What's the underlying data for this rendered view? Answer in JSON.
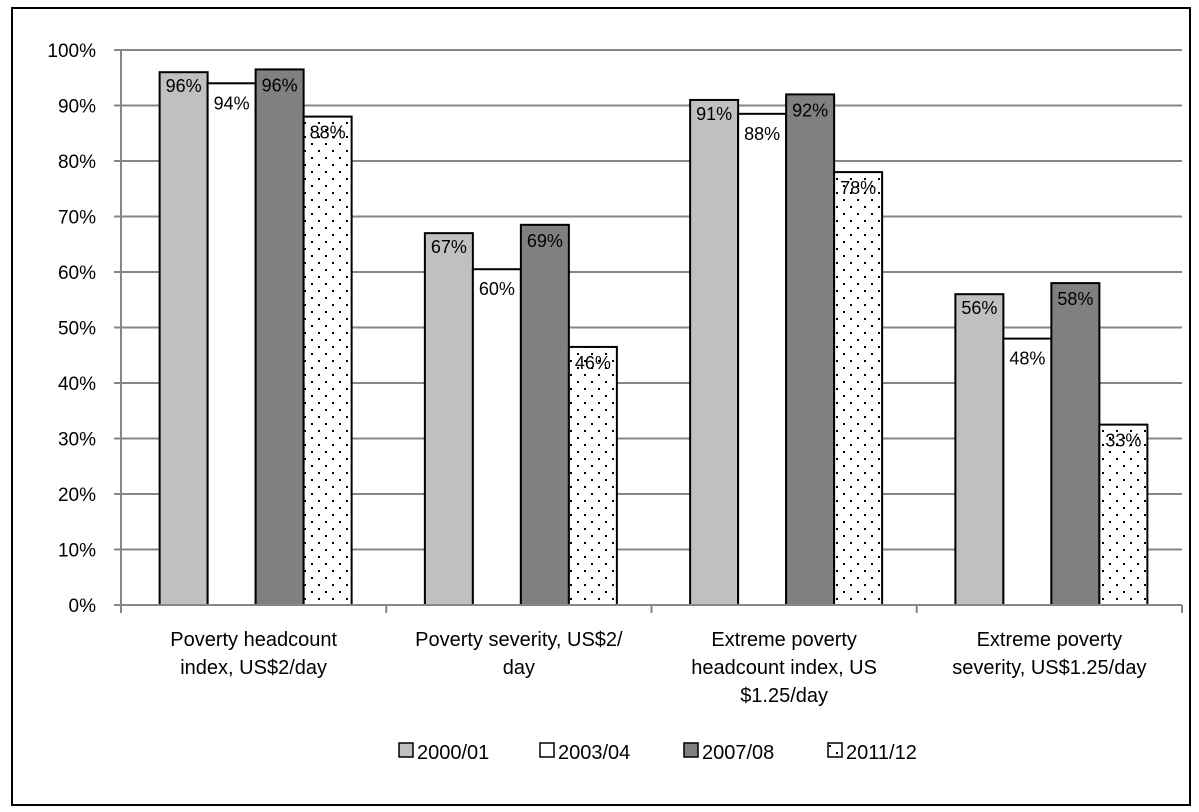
{
  "chart_data": {
    "type": "bar",
    "title": "",
    "xlabel": "",
    "ylabel": "",
    "ylim": [
      0,
      100
    ],
    "y_ticks": [
      "0%",
      "10%",
      "20%",
      "30%",
      "40%",
      "50%",
      "60%",
      "70%",
      "80%",
      "90%",
      "100%"
    ],
    "grid": true,
    "legend_position": "bottom",
    "categories": [
      [
        "Poverty headcount",
        "index, US$2/day"
      ],
      [
        "Poverty severity, US$2/",
        "day"
      ],
      [
        "Extreme poverty",
        "headcount index, US",
        "$1.25/day"
      ],
      [
        "Extreme poverty",
        "severity, US$1.25/day"
      ]
    ],
    "series": [
      {
        "name": "2000/01",
        "color": "#c0c0c0",
        "pattern": "solid",
        "values": [
          96,
          67,
          91,
          56
        ],
        "labels": [
          "96%",
          "67%",
          "91%",
          "56%"
        ]
      },
      {
        "name": "2003/04",
        "color": "#ffffff",
        "pattern": "solid",
        "values": [
          94,
          60.5,
          88.5,
          48
        ],
        "labels": [
          "94%",
          "60%",
          "88%",
          "48%"
        ]
      },
      {
        "name": "2007/08",
        "color": "#808080",
        "pattern": "solid",
        "values": [
          96.5,
          68.5,
          92,
          58
        ],
        "labels": [
          "96%",
          "69%",
          "92%",
          "58%"
        ]
      },
      {
        "name": "2011/12",
        "color": "#ffffff",
        "pattern": "dots",
        "values": [
          88,
          46.5,
          78,
          32.5
        ],
        "labels": [
          "88%",
          "46%",
          "78%",
          "33%"
        ]
      }
    ]
  }
}
